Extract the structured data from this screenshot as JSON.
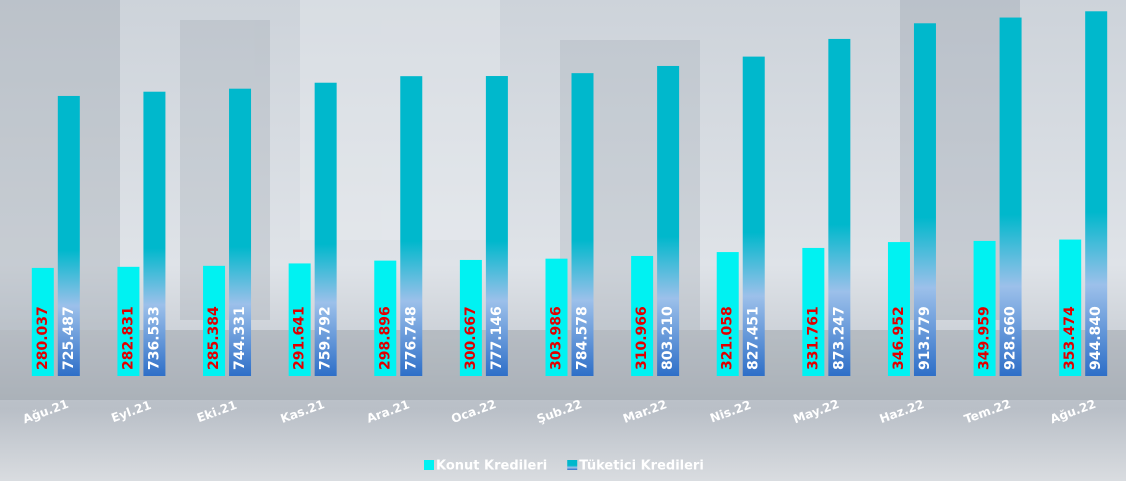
{
  "chart_data": {
    "type": "bar",
    "categories": [
      "Ağu.21",
      "Eyl.21",
      "Eki.21",
      "Kas.21",
      "Ara.21",
      "Oca.22",
      "Şub.22",
      "Mar.22",
      "Nis.22",
      "May.22",
      "Haz.22",
      "Tem.22",
      "Ağu.22"
    ],
    "series": [
      {
        "name": "Konut Kredileri",
        "color": "#00f2f2",
        "values": [
          280037,
          282831,
          285384,
          291641,
          298896,
          300667,
          303986,
          310966,
          321058,
          331761,
          346952,
          349959,
          353474
        ],
        "value_labels": [
          "280.037",
          "282.831",
          "285.384",
          "291.641",
          "298.896",
          "300.667",
          "303.986",
          "310.966",
          "321.058",
          "331.761",
          "346.952",
          "349.959",
          "353.474"
        ]
      },
      {
        "name": "Tüketici Kredileri",
        "color": "#00b8cc",
        "values": [
          725487,
          736533,
          744331,
          759792,
          776748,
          777146,
          784578,
          803210,
          827451,
          873247,
          913779,
          928660,
          944840
        ],
        "value_labels": [
          "725.487",
          "736.533",
          "744.331",
          "759.792",
          "776.748",
          "777.146",
          "784.578",
          "803.210",
          "827.451",
          "873.247",
          "913.779",
          "928.660",
          "944.840"
        ]
      }
    ],
    "ylim": [
      0,
      1000000
    ]
  }
}
